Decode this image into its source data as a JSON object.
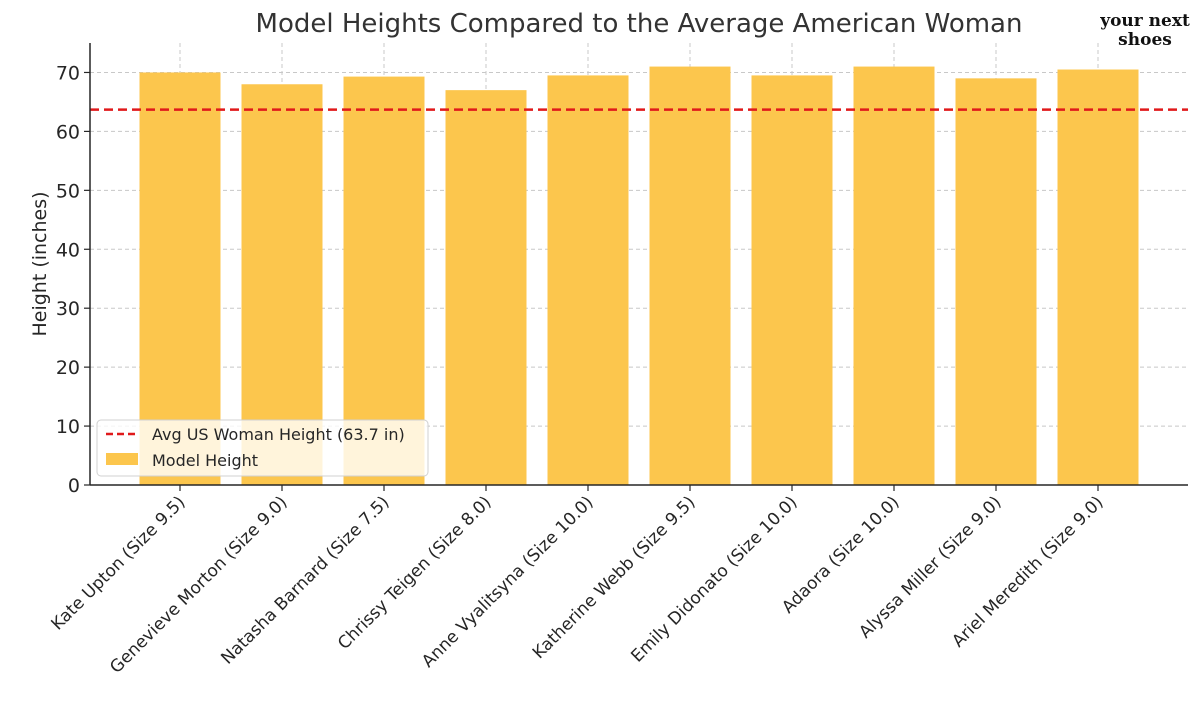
{
  "watermark": {
    "line1": "your next",
    "line2": "shoes"
  },
  "chart_data": {
    "type": "bar",
    "title": "Model Heights Compared to the Average American Woman",
    "xlabel": "",
    "ylabel": "Height (inches)",
    "ylim": [
      0,
      75
    ],
    "yticks": [
      0,
      10,
      20,
      30,
      40,
      50,
      60,
      70
    ],
    "grid": true,
    "legend_position": "lower-left",
    "categories": [
      "Kate Upton (Size 9.5)",
      "Genevieve Morton (Size 9.0)",
      "Natasha Barnard (Size 7.5)",
      "Chrissy Teigen (Size 8.0)",
      "Anne Vyalitsyna (Size 10.0)",
      "Katherine Webb (Size 9.5)",
      "Emily Didonato (Size 10.0)",
      "Adaora (Size 10.0)",
      "Alyssa Miller (Size 9.0)",
      "Ariel Meredith (Size 9.0)"
    ],
    "series": [
      {
        "name": "Model Height",
        "color": "#FCC64D",
        "values": [
          70,
          68,
          69.3,
          67,
          69.5,
          71,
          69.5,
          71,
          69,
          70.5
        ]
      }
    ],
    "reference_line": {
      "name": "Avg US Woman Height (63.7 in)",
      "value": 63.7,
      "color": "#E0191B",
      "style": "dashed"
    }
  }
}
